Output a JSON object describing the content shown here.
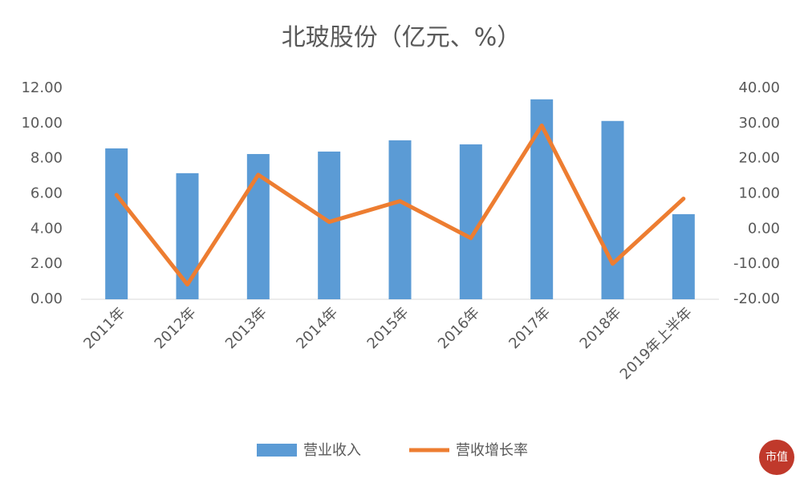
{
  "chart_data": {
    "type": "combo",
    "title": "北玻股份（亿元、%）",
    "categories": [
      "2011年",
      "2012年",
      "2013年",
      "2014年",
      "2015年",
      "2016年",
      "2017年",
      "2018年",
      "2019年上半年"
    ],
    "series": [
      {
        "name": "营业收入",
        "type": "bar",
        "color": "#5b9bd5",
        "values": [
          8.58,
          7.17,
          8.26,
          8.4,
          9.04,
          8.81,
          11.37,
          10.14,
          4.84
        ]
      },
      {
        "name": "营收增长率",
        "type": "line",
        "axis": "y2",
        "color": "#ed7d31",
        "values": [
          9.7,
          -15.8,
          15.4,
          2.0,
          7.9,
          -2.6,
          29.4,
          -9.9,
          8.6
        ]
      }
    ],
    "ylim": [
      0,
      12
    ],
    "yticks": [
      {
        "value": 0,
        "label": "0.00"
      },
      {
        "value": 2,
        "label": "2.00"
      },
      {
        "value": 4,
        "label": "4.00"
      },
      {
        "value": 6,
        "label": "6.00"
      },
      {
        "value": 8,
        "label": "8.00"
      },
      {
        "value": 10,
        "label": "10.00"
      },
      {
        "value": 12,
        "label": "12.00"
      }
    ],
    "y2lim": [
      -20,
      40
    ],
    "y2ticks": [
      {
        "value": -20,
        "label": "-20.00"
      },
      {
        "value": -10,
        "label": "-10.00"
      },
      {
        "value": 0,
        "label": "0.00"
      },
      {
        "value": 10,
        "label": "10.00"
      },
      {
        "value": 20,
        "label": "20.00"
      },
      {
        "value": 30,
        "label": "30.00"
      },
      {
        "value": 40,
        "label": "40.00"
      }
    ],
    "grid": false,
    "legend": "bottom",
    "logo": "市值"
  }
}
